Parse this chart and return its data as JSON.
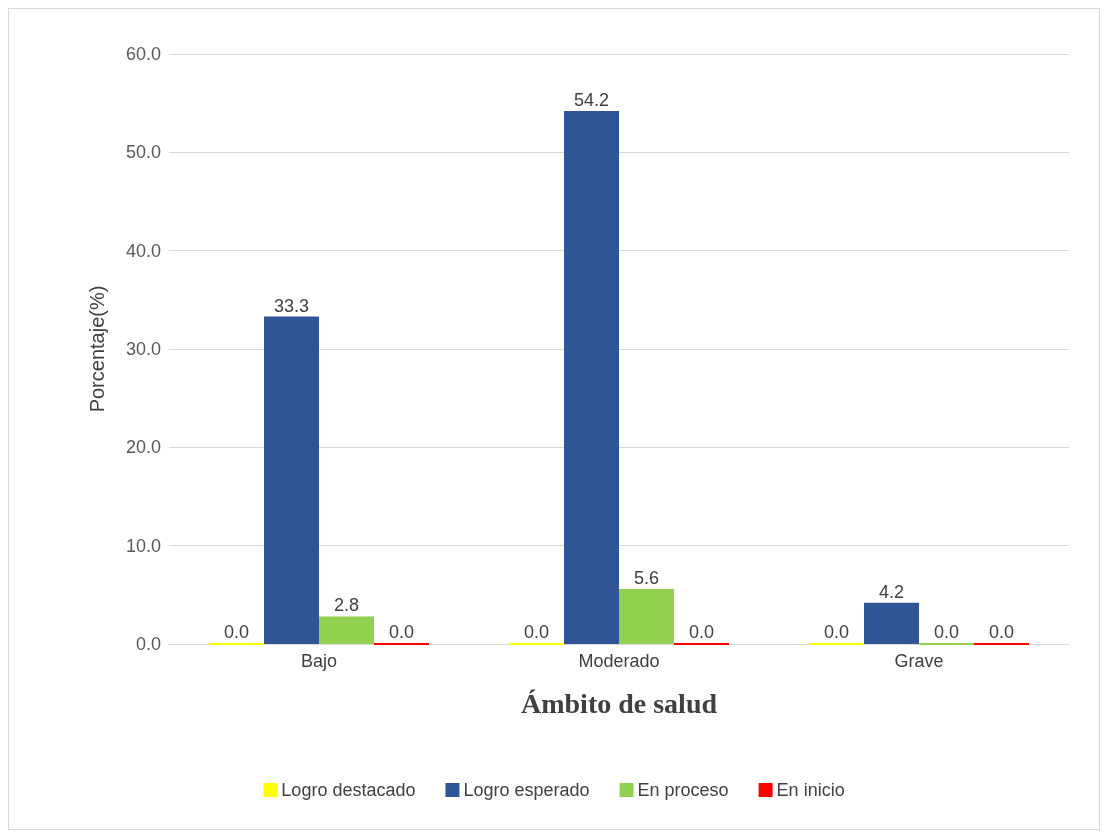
{
  "chart_data": {
    "type": "bar",
    "xlabel": "Ámbito de salud",
    "ylabel": "Porcentaje(%)",
    "categories": [
      "Bajo",
      "Moderado",
      "Grave"
    ],
    "series": [
      {
        "name": "Logro destacado",
        "color": "#ffff00",
        "values": [
          0,
          0,
          0
        ],
        "value_labels": [
          "0.0",
          "0.0",
          "0.0"
        ]
      },
      {
        "name": "Logro esperado",
        "color": "#2f5597",
        "values": [
          33.3,
          54.2,
          4.2
        ],
        "value_labels": [
          "33.3",
          "54.2",
          "4.2"
        ]
      },
      {
        "name": "En proceso",
        "color": "#92d050",
        "values": [
          2.8,
          5.6,
          0
        ],
        "value_labels": [
          "2.8",
          "5.6",
          "0.0"
        ]
      },
      {
        "name": "En inicio",
        "color": "#ff0000",
        "values": [
          0,
          0,
          0
        ],
        "value_labels": [
          "0.0",
          "0.0",
          "0.0"
        ]
      }
    ],
    "ylim": [
      0,
      60
    ],
    "yticks": [
      {
        "value": 0,
        "label": "0.0"
      },
      {
        "value": 10,
        "label": "10.0"
      },
      {
        "value": 20,
        "label": "20.0"
      },
      {
        "value": 30,
        "label": "30.0"
      },
      {
        "value": 40,
        "label": "40.0"
      },
      {
        "value": 50,
        "label": "50.0"
      },
      {
        "value": 60,
        "label": "60.0"
      }
    ],
    "grid": "y",
    "legend": "bottom"
  }
}
